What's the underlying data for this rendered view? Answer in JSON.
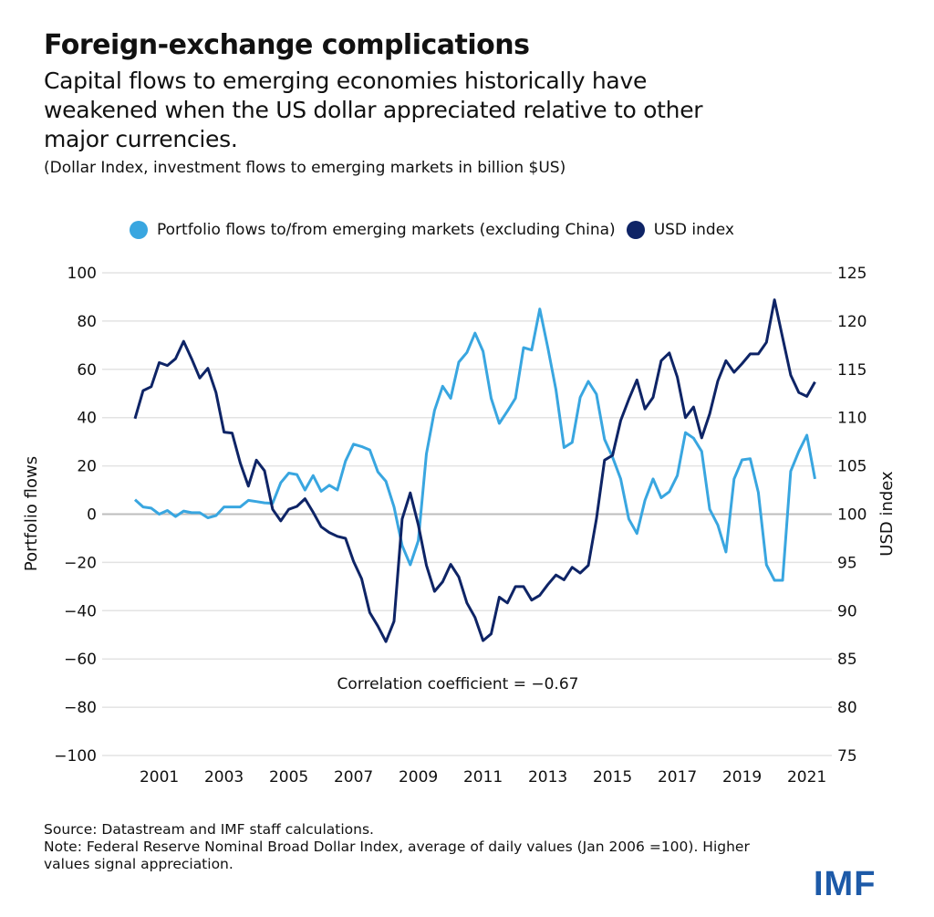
{
  "title": "Foreign-exchange complications",
  "subtitle_lines": [
    "Capital flows to emerging economies historically have",
    "weakened when the US dollar appreciated relative to other",
    "major currencies."
  ],
  "units_note": "(Dollar Index, investment flows to emerging markets in billion $US)",
  "source": "Source: Datastream and IMF staff calculations.",
  "note_lines": [
    "Note: Federal Reserve Nominal Broad Dollar Index, average of daily values (Jan 2006 =100). Higher",
    "values signal appreciation."
  ],
  "logo": "IMF",
  "colors": {
    "portfolio": "#39a6e0",
    "usd": "#0e2466",
    "grid": "#e3e3e3",
    "zero": "#bdbdbd",
    "logo": "#1d5aa8"
  },
  "chart_data": {
    "type": "line",
    "frequency": "quarterly",
    "annotation": "Correlation coefficient = −0.67",
    "ylabel_left": "Portfolio  flows",
    "ylabel_right": "USD index",
    "ylim_left": [
      -100,
      100
    ],
    "ylim_right": [
      75,
      125
    ],
    "yticks_left": [
      100,
      80,
      60,
      40,
      20,
      0,
      -20,
      -40,
      -60,
      -80,
      -100
    ],
    "yticks_right": [
      125,
      120,
      115,
      110,
      105,
      100,
      95,
      90,
      85,
      80,
      75
    ],
    "xticks": [
      "2001",
      "2003",
      "2005",
      "2007",
      "2009",
      "2011",
      "2013",
      "2015",
      "2017",
      "2019",
      "2021"
    ],
    "grid": true,
    "legend_position": "top",
    "x": [
      "2000Q2",
      "2000Q3",
      "2000Q4",
      "2001Q1",
      "2001Q2",
      "2001Q3",
      "2001Q4",
      "2002Q1",
      "2002Q2",
      "2002Q3",
      "2002Q4",
      "2003Q1",
      "2003Q2",
      "2003Q3",
      "2003Q4",
      "2004Q1",
      "2004Q2",
      "2004Q3",
      "2004Q4",
      "2005Q1",
      "2005Q2",
      "2005Q3",
      "2005Q4",
      "2006Q1",
      "2006Q2",
      "2006Q3",
      "2006Q4",
      "2007Q1",
      "2007Q2",
      "2007Q3",
      "2007Q4",
      "2008Q1",
      "2008Q2",
      "2008Q3",
      "2008Q4",
      "2009Q1",
      "2009Q2",
      "2009Q3",
      "2009Q4",
      "2010Q1",
      "2010Q2",
      "2010Q3",
      "2010Q4",
      "2011Q1",
      "2011Q2",
      "2011Q3",
      "2011Q4",
      "2012Q1",
      "2012Q2",
      "2012Q3",
      "2012Q4",
      "2013Q1",
      "2013Q2",
      "2013Q3",
      "2013Q4",
      "2014Q1",
      "2014Q2",
      "2014Q3",
      "2014Q4",
      "2015Q1",
      "2015Q2",
      "2015Q3",
      "2015Q4",
      "2016Q1",
      "2016Q2",
      "2016Q3",
      "2016Q4",
      "2017Q1",
      "2017Q2",
      "2017Q3",
      "2017Q4",
      "2018Q1",
      "2018Q2",
      "2018Q3",
      "2018Q4",
      "2019Q1",
      "2019Q2",
      "2019Q3",
      "2019Q4",
      "2020Q1",
      "2020Q2",
      "2020Q3",
      "2020Q4",
      "2021Q1",
      "2021Q2"
    ],
    "series": [
      {
        "name": "Portfolio flows to/from emerging markets (excluding China)",
        "axis": "left",
        "values": [
          6,
          3,
          2.5,
          0,
          1.5,
          -1,
          1.3,
          0.6,
          0.6,
          -1.5,
          -0.6,
          3,
          3,
          3,
          5.7,
          5.2,
          4.7,
          4.5,
          13,
          17,
          16.4,
          10,
          16,
          9.5,
          12,
          10,
          22,
          29,
          28,
          26.6,
          17.5,
          13.6,
          3,
          -13,
          -21,
          -11,
          25,
          43,
          53,
          48,
          63,
          67,
          75,
          67.5,
          48,
          37.6,
          42.7,
          48,
          69,
          68,
          85,
          69,
          51.6,
          27.6,
          29.7,
          48.4,
          55,
          49.7,
          31,
          23.6,
          14.6,
          -2,
          -8,
          5.7,
          14.6,
          6.8,
          9.3,
          16,
          33.8,
          31.5,
          26,
          2,
          -4.5,
          -15.7,
          14.6,
          22.5,
          23,
          9,
          -21,
          -27.4,
          -27.4,
          17.8,
          26,
          32.7,
          14.6
        ]
      },
      {
        "name": "USD index",
        "axis": "right",
        "values": [
          109.9,
          112.8,
          113.2,
          115.7,
          115.4,
          116.1,
          117.9,
          116.1,
          114.1,
          115.1,
          112.6,
          108.5,
          108.4,
          105.3,
          102.9,
          105.6,
          104.5,
          100.5,
          99.3,
          100.5,
          100.8,
          101.6,
          100.2,
          98.7,
          98.1,
          97.7,
          97.5,
          95.1,
          93.3,
          89.8,
          88.4,
          86.8,
          88.9,
          99.5,
          102.2,
          98.9,
          94.7,
          92.0,
          93.0,
          94.8,
          93.5,
          90.8,
          89.3,
          86.9,
          87.6,
          91.4,
          90.8,
          92.5,
          92.5,
          91.1,
          91.6,
          92.7,
          93.7,
          93.2,
          94.5,
          93.9,
          94.7,
          99.5,
          105.6,
          106.1,
          109.7,
          111.9,
          113.9,
          110.9,
          112.1,
          115.9,
          116.7,
          114.2,
          110.0,
          111.1,
          107.9,
          110.4,
          113.8,
          115.9,
          114.7,
          115.6,
          116.6,
          116.6,
          117.8,
          122.2,
          118.3,
          114.4,
          112.6,
          112.2,
          113.7
        ]
      }
    ]
  }
}
